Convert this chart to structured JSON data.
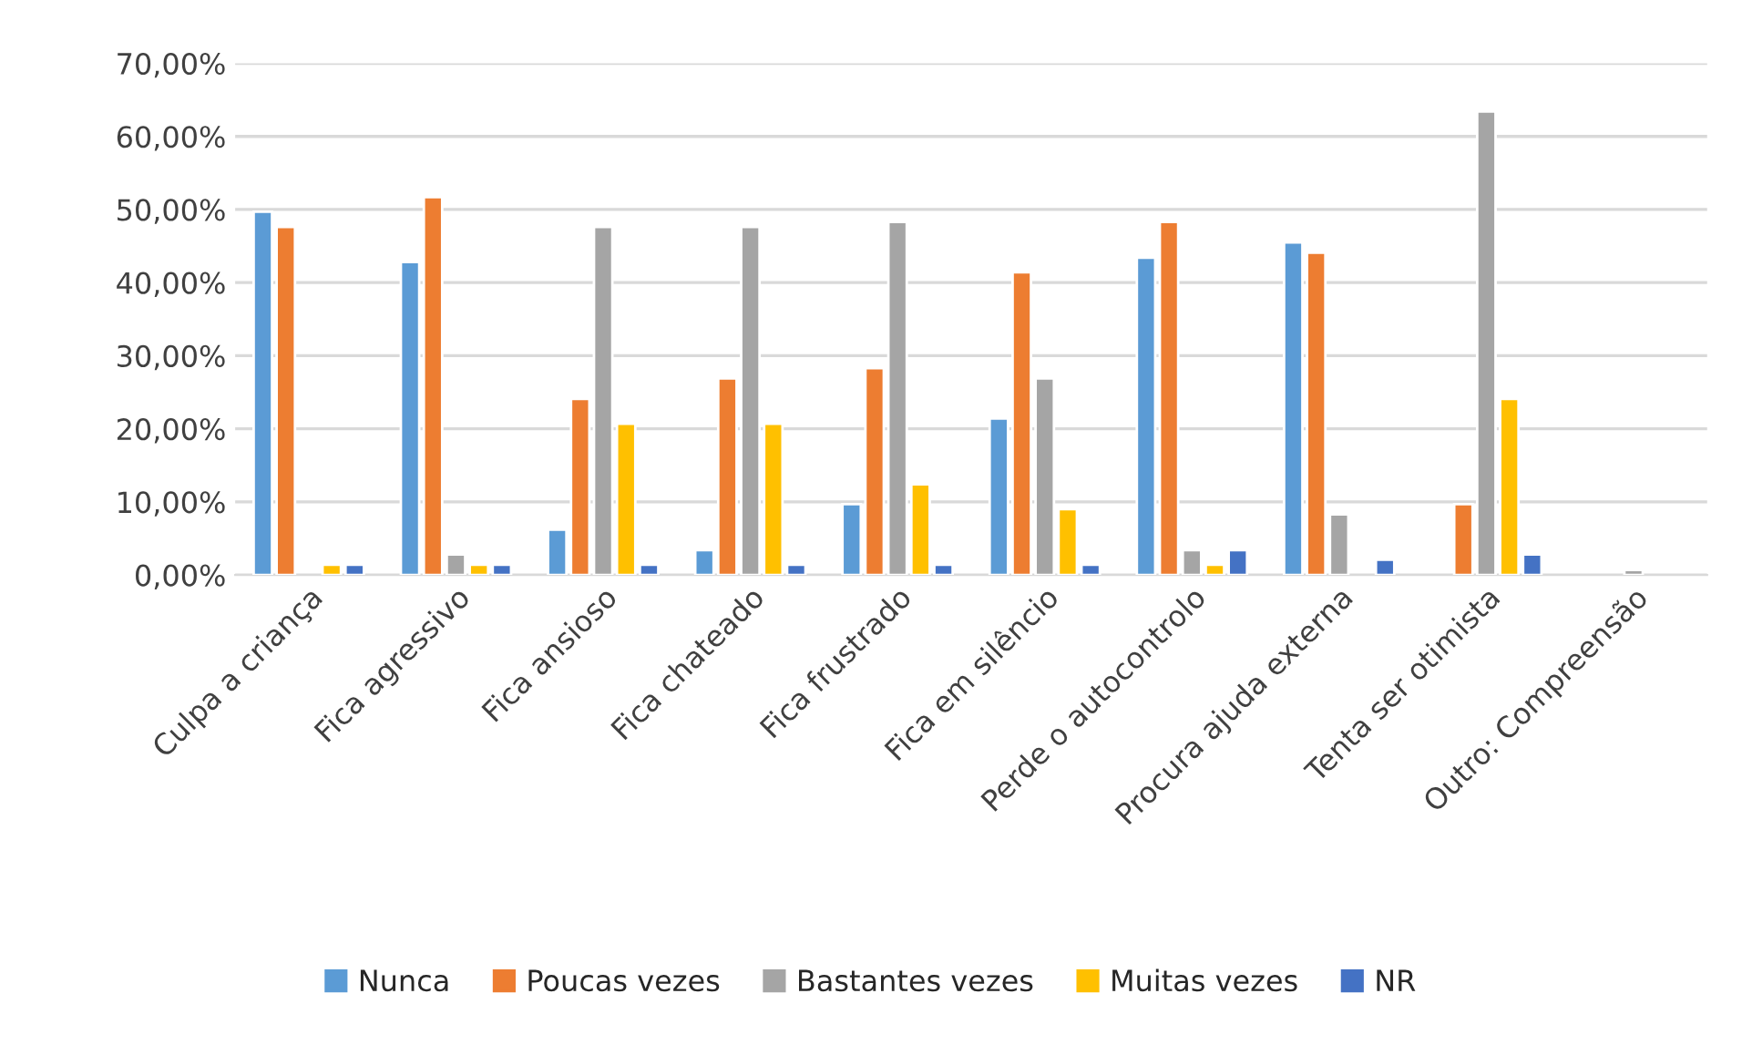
{
  "chart_data": {
    "type": "bar",
    "categories": [
      "Culpa a criança",
      "Fica agressivo",
      "Fica ansioso",
      "Fica chateado",
      "Fica frustrado",
      "Fica em silêncio",
      "Perde o autocontrolo",
      "Procura ajuda externa",
      "Tenta ser otimista",
      "Outro: Compreensão"
    ],
    "series": [
      {
        "name": "Nunca",
        "color": "#5b9bd5",
        "values": [
          49.7,
          42.8,
          6.2,
          3.4,
          9.7,
          21.4,
          43.4,
          45.5,
          null,
          null
        ]
      },
      {
        "name": "Poucas vezes",
        "color": "#ed7d31",
        "values": [
          47.6,
          51.7,
          24.1,
          26.9,
          28.3,
          41.4,
          48.3,
          44.1,
          9.7,
          null
        ]
      },
      {
        "name": "Bastantes vezes",
        "color": "#a5a5a5",
        "values": [
          null,
          2.8,
          47.6,
          47.6,
          48.3,
          26.9,
          3.4,
          8.3,
          63.4,
          0.7
        ]
      },
      {
        "name": "Muitas vezes",
        "color": "#ffc000",
        "values": [
          1.4,
          1.4,
          20.7,
          20.7,
          12.4,
          9.0,
          1.4,
          null,
          24.1,
          null
        ]
      },
      {
        "name": "NR",
        "color": "#4472c4",
        "values": [
          1.4,
          1.4,
          1.4,
          1.4,
          1.4,
          1.4,
          3.4,
          2.1,
          2.8,
          null
        ]
      }
    ],
    "ylim": [
      0,
      70
    ],
    "yticks": [
      {
        "value": 0,
        "label": "0,00%"
      },
      {
        "value": 10,
        "label": "10,00%"
      },
      {
        "value": 20,
        "label": "20,00%"
      },
      {
        "value": 30,
        "label": "30,00%"
      },
      {
        "value": 40,
        "label": "40,00%"
      },
      {
        "value": 50,
        "label": "50,00%"
      },
      {
        "value": 60,
        "label": "60,00%"
      },
      {
        "value": 70,
        "label": "70,00%"
      }
    ],
    "grid": "y",
    "legend": "bottom"
  }
}
